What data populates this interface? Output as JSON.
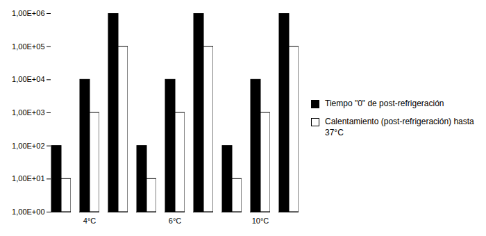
{
  "chart_data": {
    "type": "bar",
    "log": "y",
    "grid": false,
    "legend": "right",
    "categories": [
      null,
      "4°C",
      null,
      null,
      "6°C",
      null,
      null,
      "10°C",
      null
    ],
    "series": [
      {
        "name": "Tiempo \"0\" de post-refrigeración",
        "color": "#000000",
        "values": [
          100,
          10000,
          1000000,
          100,
          10000,
          1000000,
          100,
          10000,
          1000000
        ]
      },
      {
        "name": "Calentamiento (post-refrigeración) hasta 37°C",
        "color": "#ffffff",
        "values": [
          10,
          1000,
          100000,
          10,
          1000,
          100000,
          10,
          1000,
          100000
        ]
      }
    ],
    "ylim": [
      1,
      1000000
    ],
    "yticks": [
      {
        "value": 1,
        "label": "1,00E+00"
      },
      {
        "value": 10,
        "label": "1,00E+01"
      },
      {
        "value": 100,
        "label": "1,00E+02"
      },
      {
        "value": 1000,
        "label": "1,00E+03"
      },
      {
        "value": 10000,
        "label": "1,00E+04"
      },
      {
        "value": 100000,
        "label": "1,00E+05"
      },
      {
        "value": 1000000,
        "label": "1,00E+06"
      }
    ]
  }
}
